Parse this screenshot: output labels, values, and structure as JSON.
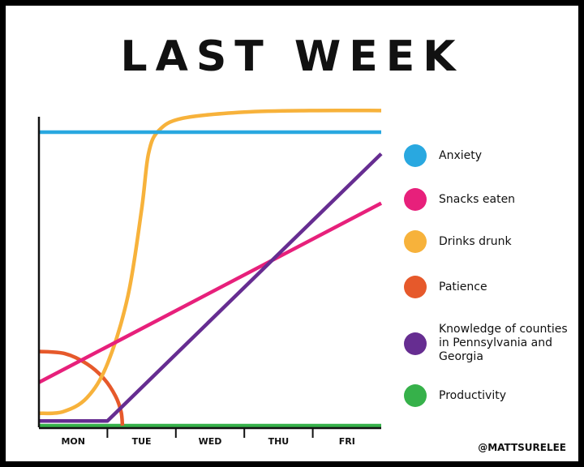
{
  "chart_data": {
    "type": "line",
    "title": "LAST WEEK",
    "x_categories": [
      "MON",
      "TUE",
      "WED",
      "THU",
      "FRI"
    ],
    "xlim": [
      0,
      5
    ],
    "ylim": [
      0,
      10
    ],
    "xlabel": "",
    "ylabel": "",
    "legend_position": "right",
    "series": [
      {
        "name": "Anxiety",
        "color": "#29a8e0",
        "points": [
          [
            0,
            9.5
          ],
          [
            5,
            9.5
          ]
        ]
      },
      {
        "name": "Snacks eaten",
        "color": "#e7207b",
        "points": [
          [
            0,
            1.4
          ],
          [
            5,
            7.2
          ]
        ]
      },
      {
        "name": "Drinks drunk",
        "color": "#f7b23b",
        "points": [
          [
            0,
            0.4
          ],
          [
            0.35,
            0.45
          ],
          [
            0.7,
            0.9
          ],
          [
            1.0,
            2.0
          ],
          [
            1.3,
            4.2
          ],
          [
            1.5,
            7.0
          ],
          [
            1.6,
            8.8
          ],
          [
            1.75,
            9.55
          ],
          [
            2.1,
            9.95
          ],
          [
            3.0,
            10.15
          ],
          [
            4.0,
            10.2
          ],
          [
            5,
            10.2
          ]
        ]
      },
      {
        "name": "Patience",
        "color": "#e6592b",
        "points": [
          [
            0,
            2.4
          ],
          [
            0.38,
            2.33
          ],
          [
            0.7,
            2.0
          ],
          [
            0.95,
            1.52
          ],
          [
            1.12,
            0.95
          ],
          [
            1.2,
            0.45
          ],
          [
            1.22,
            0
          ]
        ]
      },
      {
        "name": "Knowledge of counties in Pennsylvania and Georgia",
        "color": "#662d91",
        "points": [
          [
            0,
            0.15
          ],
          [
            1.0,
            0.15
          ],
          [
            5,
            8.8
          ]
        ]
      },
      {
        "name": "Productivity",
        "color": "#36b14a",
        "points": [
          [
            0,
            0
          ],
          [
            5,
            0
          ]
        ]
      }
    ]
  },
  "credit": "@MATTSURELEE"
}
